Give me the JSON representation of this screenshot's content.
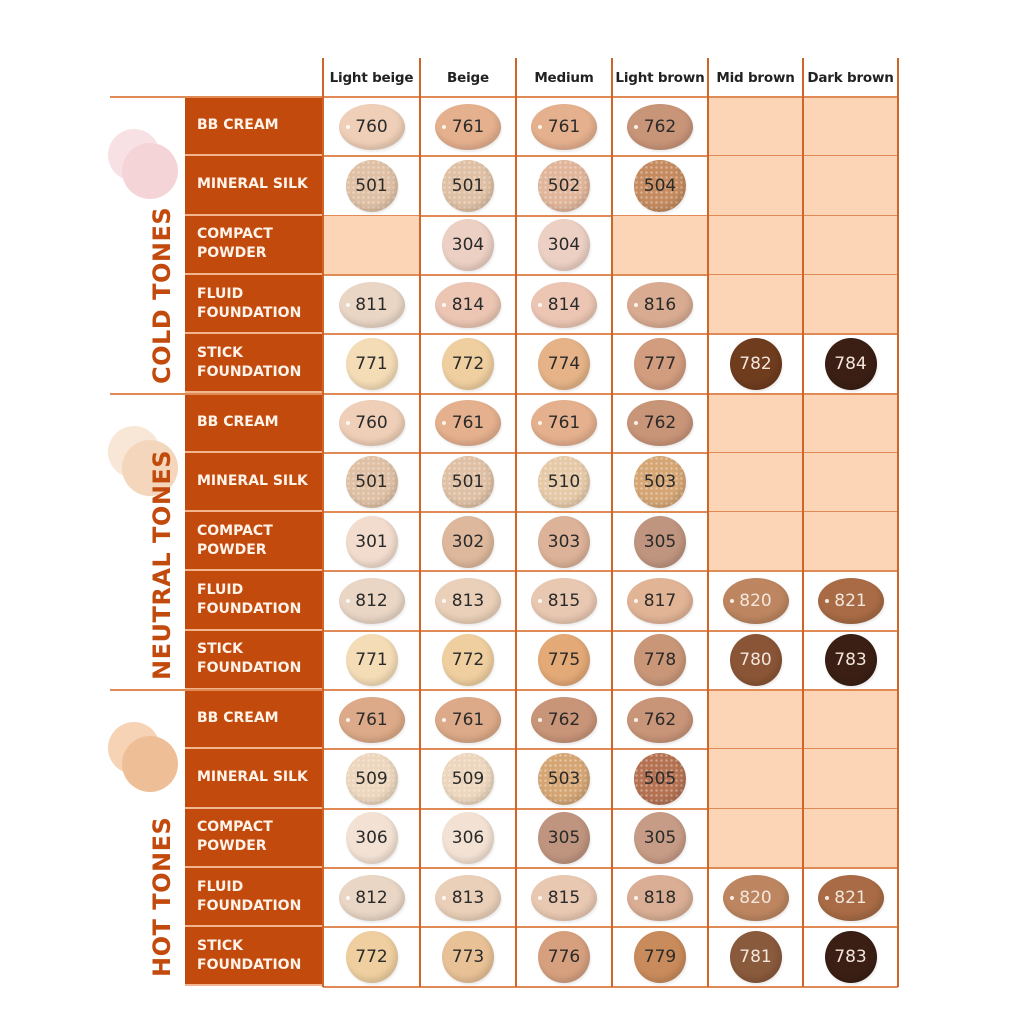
{
  "chart_data": {
    "type": "table",
    "title": "",
    "columns": [
      "Light beige",
      "Beige",
      "Medium",
      "Light brown",
      "Mid brown",
      "Dark brown"
    ],
    "groups": [
      {
        "name": "COLD TONES",
        "dot_colors": [
          "#f8e1e4",
          "#f5d4d8"
        ],
        "rows": [
          {
            "product": [
              "BB CREAM"
            ],
            "kind": "oval",
            "values": [
              "760",
              "761",
              "761",
              "762",
              null,
              null
            ],
            "colors": [
              "#efcfb7",
              "#e4b08e",
              "#e4b08e",
              "#c99579",
              null,
              null
            ]
          },
          {
            "product": [
              "MINERAL SILK"
            ],
            "kind": "speckle",
            "values": [
              "501",
              "501",
              "502",
              "504",
              null,
              null
            ],
            "colors": [
              "#dfc0a4",
              "#dfc0a4",
              "#e1b59a",
              "#c58b5f",
              null,
              null
            ]
          },
          {
            "product": [
              "COMPACT",
              "POWDER"
            ],
            "kind": "round",
            "values": [
              null,
              "304",
              "304",
              null,
              null,
              null
            ],
            "colors": [
              null,
              "#ecd0c4",
              "#ecd0c4",
              null,
              null,
              null
            ]
          },
          {
            "product": [
              "FLUID",
              "FOUNDATION"
            ],
            "kind": "oval",
            "values": [
              "811",
              "814",
              "814",
              "816",
              null,
              null
            ],
            "colors": [
              "#e9d6c5",
              "#ecc6b3",
              "#ecc6b3",
              "#d9ac92",
              null,
              null
            ]
          },
          {
            "product": [
              "STICK",
              "FOUNDATION"
            ],
            "kind": "round",
            "values": [
              "771",
              "772",
              "774",
              "777",
              "782",
              "784"
            ],
            "colors": [
              "#f4dcb6",
              "#efcf9f",
              "#e5b387",
              "#d29c7e",
              "#6f3c1e",
              "#3b1f14"
            ]
          }
        ]
      },
      {
        "name": "NEUTRAL TONES",
        "dot_colors": [
          "#f8e6d6",
          "#f3d6bb"
        ],
        "rows": [
          {
            "product": [
              "BB CREAM"
            ],
            "kind": "oval",
            "values": [
              "760",
              "761",
              "761",
              "762",
              null,
              null
            ],
            "colors": [
              "#efcfb7",
              "#e4b08e",
              "#e4b08e",
              "#c99579",
              null,
              null
            ]
          },
          {
            "product": [
              "MINERAL SILK"
            ],
            "kind": "speckle",
            "values": [
              "501",
              "501",
              "510",
              "503",
              null,
              null
            ],
            "colors": [
              "#dfc0a4",
              "#dfc0a4",
              "#e6caa8",
              "#d5a674",
              null,
              null
            ]
          },
          {
            "product": [
              "COMPACT",
              "POWDER"
            ],
            "kind": "round",
            "values": [
              "301",
              "302",
              "303",
              "305",
              null,
              null
            ],
            "colors": [
              "#f1dccd",
              "#deb89c",
              "#dcb298",
              "#bf957f",
              null,
              null
            ]
          },
          {
            "product": [
              "FLUID",
              "FOUNDATION"
            ],
            "kind": "oval",
            "values": [
              "812",
              "813",
              "815",
              "817",
              "820",
              "821"
            ],
            "colors": [
              "#e9d6c5",
              "#ead0b8",
              "#e9c8b2",
              "#e2b496",
              "#bd8660",
              "#a86b45"
            ]
          },
          {
            "product": [
              "STICK",
              "FOUNDATION"
            ],
            "kind": "round",
            "values": [
              "771",
              "772",
              "775",
              "778",
              "780",
              "783"
            ],
            "colors": [
              "#f4dcb6",
              "#efcf9f",
              "#e3a977",
              "#c99778",
              "#8a5536",
              "#3b1f14"
            ]
          }
        ]
      },
      {
        "name": "HOT TONES",
        "dot_colors": [
          "#f6d3b4",
          "#eebf97"
        ],
        "rows": [
          {
            "product": [
              "BB CREAM"
            ],
            "kind": "oval",
            "values": [
              "761",
              "761",
              "762",
              "762",
              null,
              null
            ],
            "colors": [
              "#dcaa88",
              "#dcaa88",
              "#c99579",
              "#c99579",
              null,
              null
            ]
          },
          {
            "product": [
              "MINERAL SILK"
            ],
            "kind": "speckle",
            "values": [
              "509",
              "509",
              "503",
              "505",
              null,
              null
            ],
            "colors": [
              "#ecd6bd",
              "#ecd6bd",
              "#d5a674",
              "#b57252",
              null,
              null
            ]
          },
          {
            "product": [
              "COMPACT",
              "POWDER"
            ],
            "kind": "round",
            "values": [
              "306",
              "306",
              "305",
              "305",
              null,
              null
            ],
            "colors": [
              "#f3e2d4",
              "#f3e2d4",
              "#bf957f",
              "#c79c86",
              null,
              null
            ]
          },
          {
            "product": [
              "FLUID",
              "FOUNDATION"
            ],
            "kind": "oval",
            "values": [
              "812",
              "813",
              "815",
              "818",
              "820",
              "821"
            ],
            "colors": [
              "#e9d6c5",
              "#ead0b8",
              "#e9c8b2",
              "#d9ae94",
              "#bd8660",
              "#a86b45"
            ]
          },
          {
            "product": [
              "STICK",
              "FOUNDATION"
            ],
            "kind": "round",
            "values": [
              "772",
              "773",
              "776",
              "779",
              "781",
              "783"
            ],
            "colors": [
              "#efcf9f",
              "#e8c196",
              "#d6a07f",
              "#c98b5b",
              "#8a5a3c",
              "#3b1f14"
            ]
          }
        ]
      }
    ]
  }
}
